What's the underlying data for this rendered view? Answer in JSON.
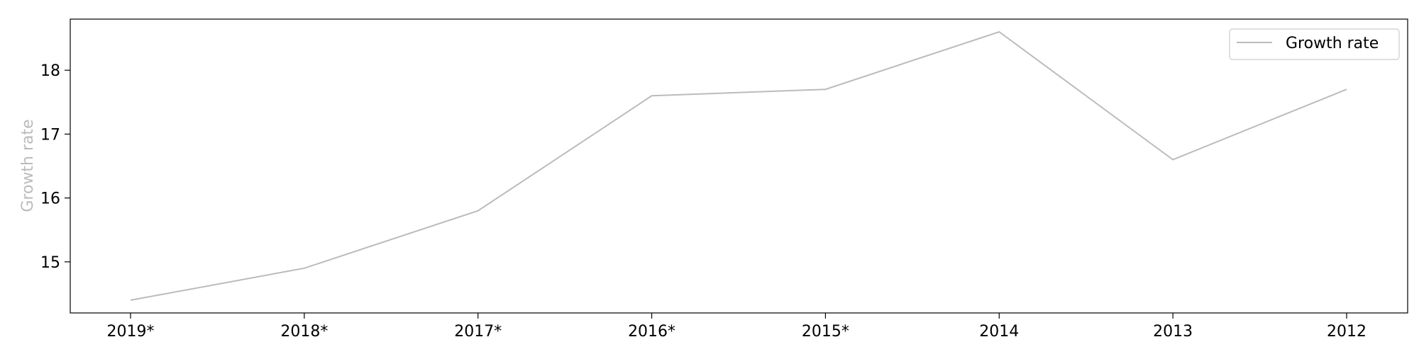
{
  "chart_data": {
    "type": "line",
    "categories": [
      "2019*",
      "2018*",
      "2017*",
      "2016*",
      "2015*",
      "2014",
      "2013",
      "2012"
    ],
    "series": [
      {
        "name": "Growth rate",
        "values": [
          14.4,
          14.9,
          15.8,
          17.6,
          17.7,
          18.6,
          16.6,
          17.7
        ]
      }
    ],
    "xlabel": "",
    "ylabel": "Growth rate",
    "ylim": [
      14.2,
      18.8
    ],
    "yticks": [
      15,
      16,
      17,
      18
    ],
    "legend_position": "top-right",
    "grid": false,
    "colors": {
      "line": "#bbbbbb",
      "ylabel": "#bbbbbb",
      "axis": "#000000"
    }
  }
}
